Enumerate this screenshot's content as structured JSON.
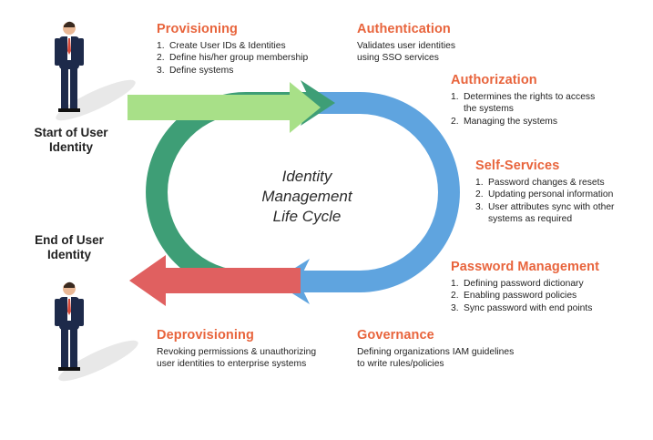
{
  "colors": {
    "heading": "#e8643c",
    "teal": "#3e9e76",
    "blue": "#5fa4df",
    "green_arrow": "#a8e088",
    "red_arrow": "#e06060",
    "suit": "#1d2a4a"
  },
  "center": {
    "line1": "Identity",
    "line2": "Management",
    "line3": "Life Cycle"
  },
  "start_label": {
    "line1": "Start of User",
    "line2": "Identity"
  },
  "end_label": {
    "line1": "End of User",
    "line2": "Identity"
  },
  "provisioning": {
    "title": "Provisioning",
    "items": [
      {
        "num": "1.",
        "text": "Create User IDs & Identities"
      },
      {
        "num": "2.",
        "text": "Define his/her group membership"
      },
      {
        "num": "3.",
        "text": "Define systems"
      }
    ]
  },
  "authentication": {
    "title": "Authentication",
    "line1": "Validates user identities",
    "line2": "using SSO services"
  },
  "authorization": {
    "title": "Authorization",
    "items": [
      {
        "num": "1.",
        "text": "Determines the rights to access",
        "text2": "the systems"
      },
      {
        "num": "2.",
        "text": "Managing the systems"
      }
    ]
  },
  "self_services": {
    "title": "Self-Services",
    "items": [
      {
        "num": "1.",
        "text": "Password changes & resets"
      },
      {
        "num": "2.",
        "text": "Updating personal information"
      },
      {
        "num": "3.",
        "text": "User attributes sync with other",
        "text2": "systems as required"
      }
    ]
  },
  "password_management": {
    "title": "Password Management",
    "items": [
      {
        "num": "1.",
        "text": "Defining password dictionary"
      },
      {
        "num": "2.",
        "text": "Enabling password policies"
      },
      {
        "num": "3.",
        "text": "Sync password with end points"
      }
    ]
  },
  "deprovisioning": {
    "title": "Deprovisioning",
    "line1": "Revoking permissions & unauthorizing",
    "line2": "user identities to enterprise systems"
  },
  "governance": {
    "title": "Governance",
    "line1": "Defining organizations IAM guidelines",
    "line2": "to write rules/policies"
  }
}
